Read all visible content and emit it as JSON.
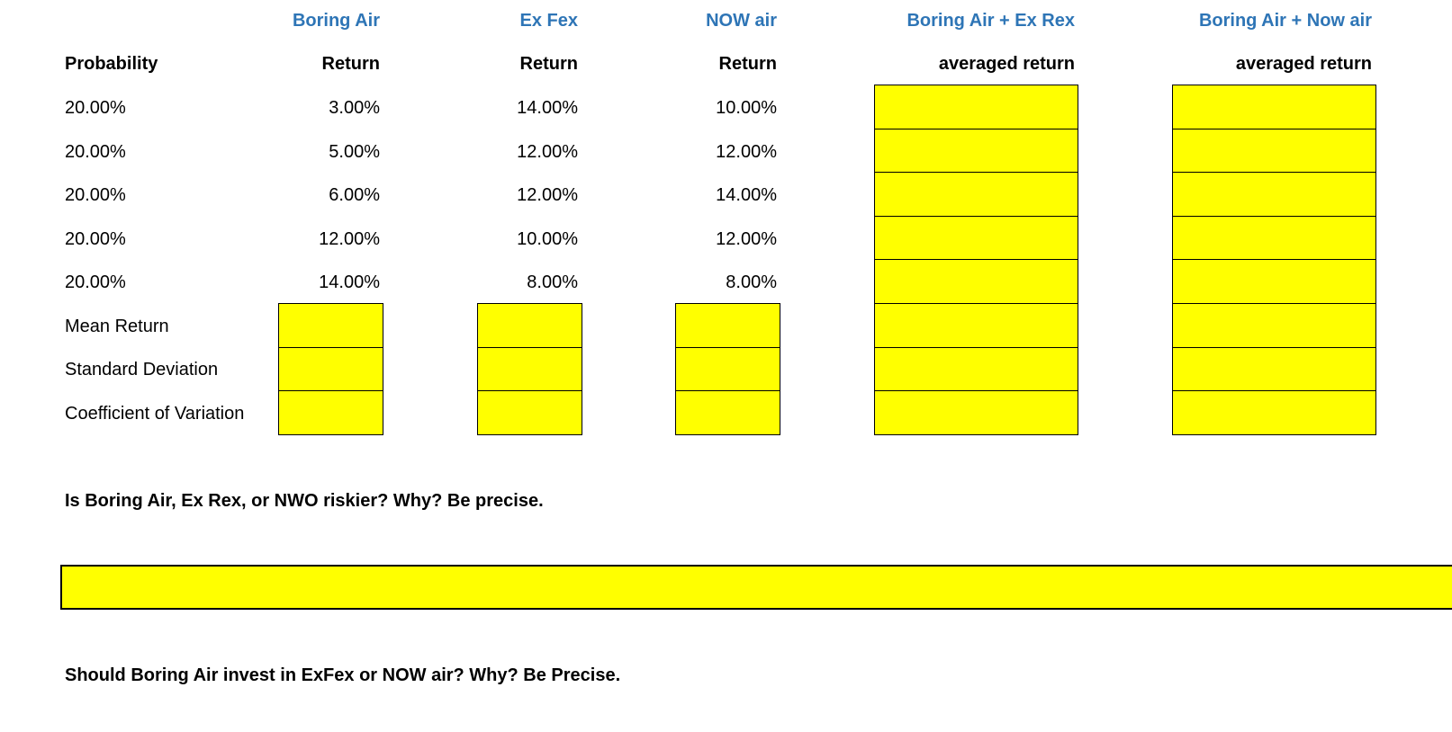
{
  "headers": {
    "company": [
      "Boring Air",
      "Ex Fex",
      "NOW air",
      "Boring Air + Ex Rex",
      "Boring Air + Now air"
    ],
    "sub": [
      "Return",
      "Return",
      "Return",
      "averaged return",
      "averaged return"
    ],
    "probability": "Probability"
  },
  "rows": [
    {
      "prob": "20.00%",
      "boring": "3.00%",
      "exfex": "14.00%",
      "now": "10.00%"
    },
    {
      "prob": "20.00%",
      "boring": "5.00%",
      "exfex": "12.00%",
      "now": "12.00%"
    },
    {
      "prob": "20.00%",
      "boring": "6.00%",
      "exfex": "12.00%",
      "now": "14.00%"
    },
    {
      "prob": "20.00%",
      "boring": "12.00%",
      "exfex": "10.00%",
      "now": "12.00%"
    },
    {
      "prob": "20.00%",
      "boring": "14.00%",
      "exfex": "8.00%",
      "now": "8.00%"
    }
  ],
  "stats": [
    "Mean Return",
    "Standard Deviation",
    "Coefficient of Variation"
  ],
  "questions": [
    "Is Boring Air, Ex Rex, or NWO riskier? Why? Be precise.",
    "Should Boring Air invest in ExFex or NOW air? Why? Be Precise."
  ],
  "colors": {
    "highlight": "#ffff00",
    "header_blue": "#2e75b6"
  }
}
